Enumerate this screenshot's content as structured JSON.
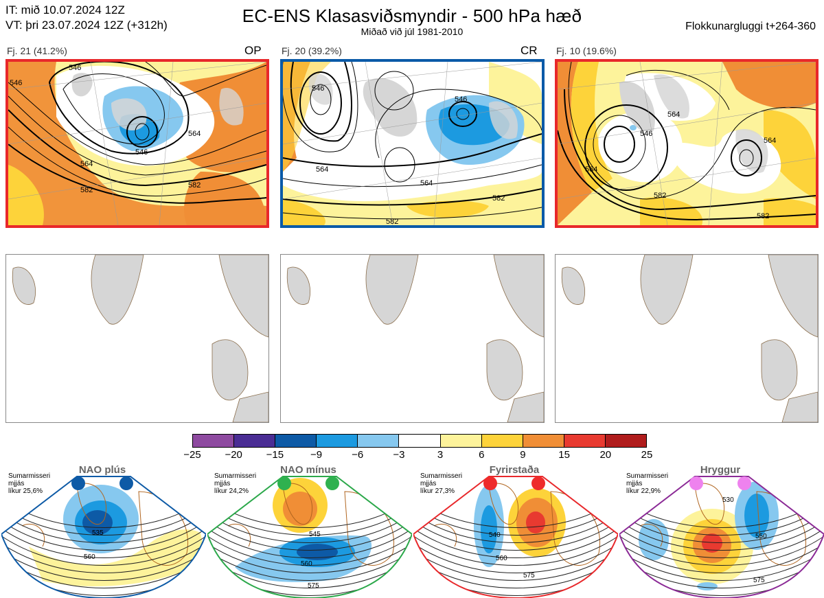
{
  "header": {
    "init_line": "IT: mið 10.07.2024 12Z",
    "valid_line": "VT: þri 23.07.2024 12Z  (+312h)",
    "title": "EC-ENS Klasasviðsmyndir - 500 hPa hæð",
    "subtitle": "Miðað við júl 1981-2010",
    "window": "Flokkunargluggi t+264-360"
  },
  "clusters": [
    {
      "label": "Fj. 21 (41.2%)",
      "code": "OP",
      "border_color": "#e8282b",
      "contours": [
        "546",
        "546",
        "564",
        "582",
        "582",
        "546",
        "564"
      ]
    },
    {
      "label": "Fj. 20 (39.2%)",
      "code": "CR",
      "border_color": "#0a5aa8",
      "contours": [
        "546",
        "546",
        "564",
        "564",
        "582",
        "582"
      ]
    },
    {
      "label": "Fj. 10 (19.6%)",
      "code": "",
      "border_color": "#e8282b",
      "contours": [
        "546",
        "564",
        "564",
        "564",
        "582",
        "582"
      ]
    }
  ],
  "colorbar": {
    "ticks": [
      "−25",
      "−20",
      "−15",
      "−9",
      "−6",
      "−3",
      "3",
      "6",
      "9",
      "15",
      "20",
      "25"
    ],
    "colors": [
      "#8e4aa0",
      "#4a2d94",
      "#0d5aa6",
      "#1c9ae0",
      "#86c8ef",
      "#ffffff",
      "#fdf39b",
      "#fdd33a",
      "#f08e36",
      "#e83a30",
      "#b01c1c"
    ]
  },
  "regimes": [
    {
      "name": "NAO plús",
      "season": "Sumarmisseri",
      "match": "mjjás",
      "prob": "líkur 25,6%",
      "color": "#0d5aa6",
      "dot_color": "#0d5aa6",
      "contours": [
        "535",
        "560"
      ]
    },
    {
      "name": "NAO mínus",
      "season": "Sumarmisseri",
      "match": "mjjás",
      "prob": "líkur 24,2%",
      "color": "#2ba84a",
      "dot_color": "#2fb14f",
      "contours": [
        "545",
        "560",
        "575"
      ]
    },
    {
      "name": "Fyrirstaða",
      "season": "Sumarmisseri",
      "match": "mjjás",
      "prob": "líkur 27,3%",
      "color": "#e8282b",
      "dot_color": "#ee2b2b",
      "contours": [
        "540",
        "560",
        "575"
      ]
    },
    {
      "name": "Hryggur",
      "season": "Sumarmisseri",
      "match": "mjjás",
      "prob": "líkur 22,9%",
      "color": "#8b2a96",
      "dot_color": "#ee82ee",
      "contours": [
        "530",
        "550",
        "575"
      ]
    }
  ]
}
